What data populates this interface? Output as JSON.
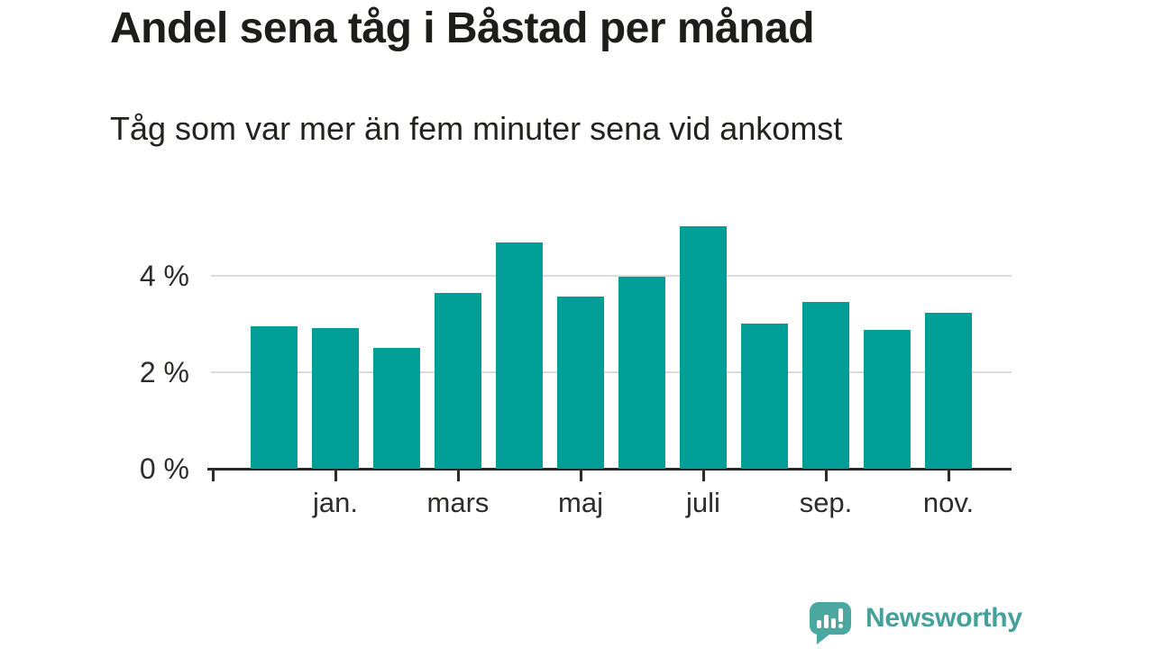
{
  "header": {
    "title": "Andel sena tåg i Båstad per månad",
    "subtitle": "Tåg som var mer än fem minuter sena vid ankomst"
  },
  "chart_data": {
    "type": "bar",
    "title": "Andel sena tåg i Båstad per månad",
    "subtitle": "Tåg som var mer än fem minuter sena vid ankomst",
    "unit": "%",
    "bar_count": 12,
    "categories": [
      "",
      "jan.",
      "",
      "mars",
      "",
      "maj",
      "",
      "juli",
      "",
      "sep.",
      "",
      "nov."
    ],
    "values": [
      2.96,
      2.92,
      2.51,
      3.66,
      4.71,
      3.57,
      3.98,
      5.03,
      3.01,
      3.47,
      2.88,
      3.24
    ],
    "x_tick_labels": [
      "jan.",
      "mars",
      "maj",
      "juli",
      "sep.",
      "nov."
    ],
    "x_tick_bar_indices": [
      1,
      3,
      5,
      7,
      9,
      11
    ],
    "y_tick_labels": [
      "0 %",
      "2 %",
      "4 %"
    ],
    "y_tick_values": [
      0,
      2,
      4
    ],
    "gridline_values": [
      2,
      4
    ],
    "ylim": [
      0,
      5.43
    ],
    "grid": true,
    "legend": "none",
    "bar_color": "#009e97",
    "gridline_color": "#dcdcdc",
    "axis_color": "#2b2a28"
  },
  "branding": {
    "logo_text": "Newsworthy",
    "logo_icon": "newsworthy-speech-bubble-bar-chart-icon",
    "logo_mark_color": "#4ca7a0",
    "logo_text_color": "#46a09a"
  }
}
